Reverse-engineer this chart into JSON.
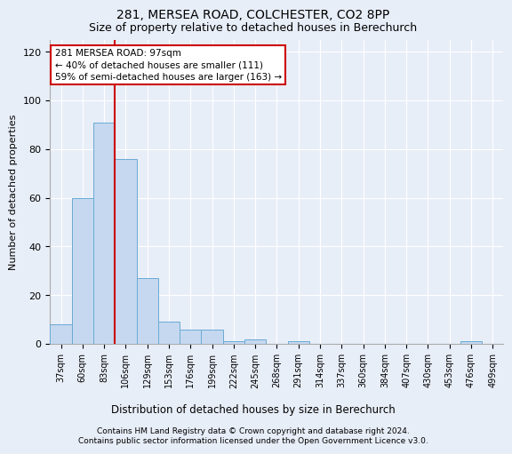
{
  "title1": "281, MERSEA ROAD, COLCHESTER, CO2 8PP",
  "title2": "Size of property relative to detached houses in Berechurch",
  "xlabel": "Distribution of detached houses by size in Berechurch",
  "ylabel": "Number of detached properties",
  "bar_labels": [
    "37sqm",
    "60sqm",
    "83sqm",
    "106sqm",
    "129sqm",
    "153sqm",
    "176sqm",
    "199sqm",
    "222sqm",
    "245sqm",
    "268sqm",
    "291sqm",
    "314sqm",
    "337sqm",
    "360sqm",
    "384sqm",
    "407sqm",
    "430sqm",
    "453sqm",
    "476sqm",
    "499sqm"
  ],
  "bar_values": [
    8,
    60,
    91,
    76,
    27,
    9,
    6,
    6,
    1,
    2,
    0,
    1,
    0,
    0,
    0,
    0,
    0,
    0,
    0,
    1,
    0
  ],
  "bar_color": "#c5d8f0",
  "bar_edge_color": "#6aaad4",
  "vline_color": "#cc0000",
  "annotation_text": "281 MERSEA ROAD: 97sqm\n← 40% of detached houses are smaller (111)\n59% of semi-detached houses are larger (163) →",
  "annotation_box_color": "#ffffff",
  "annotation_box_edge": "#cc0000",
  "ylim": [
    0,
    125
  ],
  "yticks": [
    0,
    20,
    40,
    60,
    80,
    100,
    120
  ],
  "footer1": "Contains HM Land Registry data © Crown copyright and database right 2024.",
  "footer2": "Contains public sector information licensed under the Open Government Licence v3.0.",
  "bg_color": "#e8eef8",
  "plot_bg_color": "#e8eef8"
}
